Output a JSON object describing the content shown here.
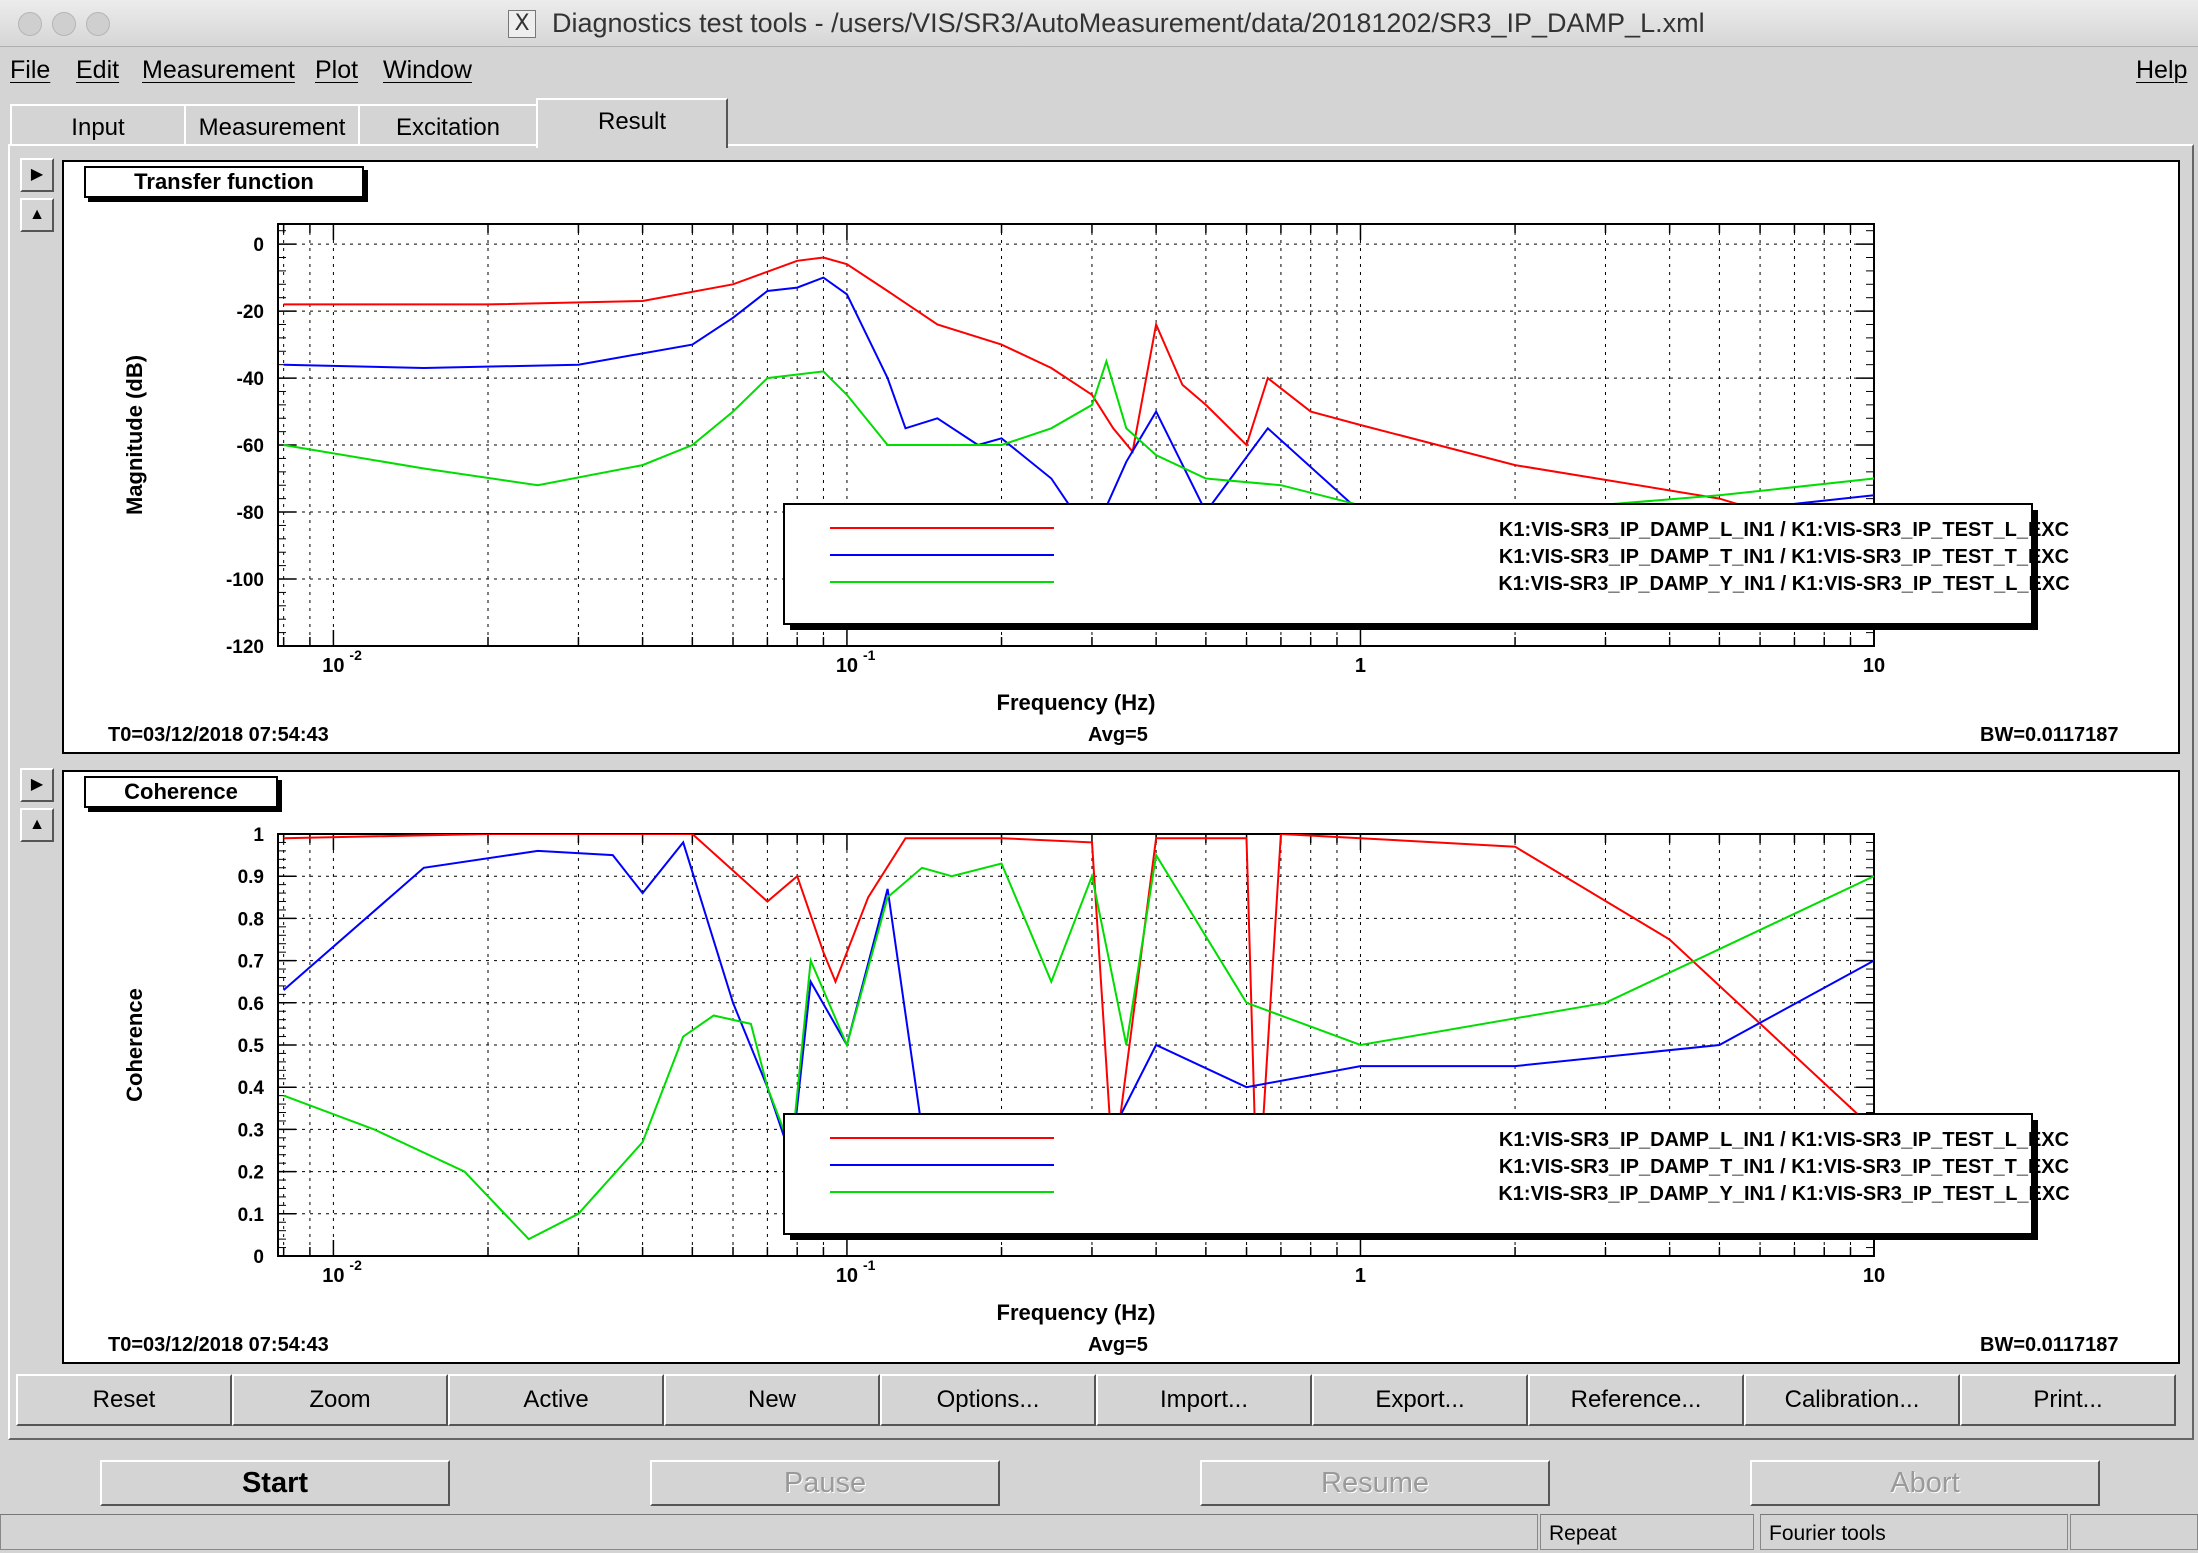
{
  "window": {
    "title": "Diagnostics test tools - /users/VIS/SR3/AutoMeasurement/data/20181202/SR3_IP_DAMP_L.xml",
    "title_icon": "X"
  },
  "menu": {
    "file": "File",
    "edit": "Edit",
    "measurement": "Measurement",
    "plot": "Plot",
    "window": "Window",
    "help": "Help"
  },
  "tabs": [
    "Input",
    "Measurement",
    "Excitation",
    "Result"
  ],
  "colors": {
    "series_L": "#ff0000",
    "series_T": "#0000ff",
    "series_Y": "#00dd00"
  },
  "transfer_panel": {
    "title": "Transfer function",
    "t0": "T0=03/12/2018 07:54:43",
    "avg": "Avg=5",
    "bw": "BW=0.0117187"
  },
  "coherence_panel": {
    "title": "Coherence",
    "t0": "T0=03/12/2018 07:54:43",
    "avg": "Avg=5",
    "bw": "BW=0.0117187"
  },
  "chart_data": [
    {
      "type": "line",
      "xlabel": "Frequency (Hz)",
      "ylabel": "Magnitude (dB)",
      "xscale": "log",
      "xlim": [
        0.0078,
        10
      ],
      "ylim": [
        -120,
        6
      ],
      "yticks": [
        "0",
        "-20",
        "-40",
        "-60",
        "-80",
        "-100",
        "-120"
      ],
      "xtick_labels": [
        "10",
        "-2",
        "10",
        "-1",
        "1",
        "10"
      ],
      "grid": true,
      "legend": "bottom-right",
      "series": [
        {
          "name": "K1:VIS-SR3_IP_DAMP_L_IN1 / K1:VIS-SR3_IP_TEST_L_EXC",
          "x": [
            0.008,
            0.02,
            0.04,
            0.06,
            0.08,
            0.09,
            0.1,
            0.12,
            0.15,
            0.2,
            0.25,
            0.3,
            0.33,
            0.36,
            0.4,
            0.45,
            0.5,
            0.6,
            0.66,
            0.8,
            1,
            2,
            5,
            10
          ],
          "y": [
            -18,
            -18,
            -17,
            -12,
            -5,
            -4,
            -6,
            -14,
            -24,
            -30,
            -37,
            -45,
            -55,
            -62,
            -24,
            -42,
            -48,
            -60,
            -40,
            -50,
            -54,
            -66,
            -76,
            -90
          ]
        },
        {
          "name": "K1:VIS-SR3_IP_DAMP_T_IN1 / K1:VIS-SR3_IP_TEST_T_EXC",
          "x": [
            0.008,
            0.015,
            0.03,
            0.05,
            0.06,
            0.07,
            0.08,
            0.09,
            0.1,
            0.12,
            0.13,
            0.15,
            0.18,
            0.2,
            0.25,
            0.3,
            0.35,
            0.4,
            0.5,
            0.66,
            1,
            2,
            5,
            10
          ],
          "y": [
            -36,
            -37,
            -36,
            -30,
            -22,
            -14,
            -13,
            -10,
            -15,
            -40,
            -55,
            -52,
            -60,
            -58,
            -70,
            -88,
            -65,
            -50,
            -80,
            -55,
            -80,
            -80,
            -80,
            -75
          ]
        },
        {
          "name": "K1:VIS-SR3_IP_DAMP_Y_IN1 / K1:VIS-SR3_IP_TEST_L_EXC",
          "x": [
            0.008,
            0.015,
            0.025,
            0.04,
            0.05,
            0.06,
            0.07,
            0.09,
            0.1,
            0.12,
            0.15,
            0.2,
            0.25,
            0.3,
            0.32,
            0.35,
            0.4,
            0.5,
            0.7,
            1,
            2,
            5,
            10
          ],
          "y": [
            -60,
            -67,
            -72,
            -66,
            -60,
            -50,
            -40,
            -38,
            -45,
            -60,
            -60,
            -60,
            -55,
            -48,
            -35,
            -55,
            -63,
            -70,
            -72,
            -78,
            -80,
            -75,
            -70
          ]
        }
      ]
    },
    {
      "type": "line",
      "xlabel": "Frequency (Hz)",
      "ylabel": "Coherence",
      "xscale": "log",
      "xlim": [
        0.0078,
        10
      ],
      "ylim": [
        0,
        1
      ],
      "yticks": [
        "1",
        "0.9",
        "0.8",
        "0.7",
        "0.6",
        "0.5",
        "0.4",
        "0.3",
        "0.2",
        "0.1",
        "0"
      ],
      "xtick_labels": [
        "10",
        "-2",
        "10",
        "-1",
        "1",
        "10"
      ],
      "grid": true,
      "legend": "bottom-right",
      "series": [
        {
          "name": "K1:VIS-SR3_IP_DAMP_L_IN1 / K1:VIS-SR3_IP_TEST_L_EXC",
          "x": [
            0.008,
            0.02,
            0.05,
            0.07,
            0.08,
            0.09,
            0.095,
            0.11,
            0.13,
            0.2,
            0.3,
            0.33,
            0.4,
            0.6,
            0.63,
            0.7,
            1,
            2,
            4,
            10
          ],
          "y": [
            0.99,
            1,
            1,
            0.84,
            0.9,
            0.72,
            0.65,
            0.85,
            0.99,
            0.99,
            0.98,
            0.2,
            0.99,
            0.99,
            0.1,
            1,
            0.99,
            0.97,
            0.75,
            0.3
          ]
        },
        {
          "name": "K1:VIS-SR3_IP_DAMP_T_IN1 / K1:VIS-SR3_IP_TEST_T_EXC",
          "x": [
            0.008,
            0.015,
            0.025,
            0.035,
            0.04,
            0.048,
            0.06,
            0.07,
            0.078,
            0.085,
            0.1,
            0.12,
            0.14,
            0.16,
            0.2,
            0.3,
            0.4,
            0.6,
            1,
            2,
            5,
            10
          ],
          "y": [
            0.63,
            0.92,
            0.96,
            0.95,
            0.86,
            0.98,
            0.6,
            0.4,
            0.23,
            0.65,
            0.5,
            0.87,
            0.3,
            0.18,
            0.1,
            0.2,
            0.5,
            0.4,
            0.45,
            0.45,
            0.5,
            0.7
          ]
        },
        {
          "name": "K1:VIS-SR3_IP_DAMP_Y_IN1 / K1:VIS-SR3_IP_TEST_L_EXC",
          "x": [
            0.008,
            0.012,
            0.018,
            0.024,
            0.03,
            0.04,
            0.048,
            0.055,
            0.065,
            0.07,
            0.078,
            0.085,
            0.1,
            0.12,
            0.14,
            0.16,
            0.2,
            0.25,
            0.3,
            0.35,
            0.4,
            0.6,
            1,
            3,
            10
          ],
          "y": [
            0.38,
            0.3,
            0.2,
            0.04,
            0.1,
            0.27,
            0.52,
            0.57,
            0.55,
            0.4,
            0.25,
            0.7,
            0.5,
            0.85,
            0.92,
            0.9,
            0.93,
            0.65,
            0.9,
            0.5,
            0.95,
            0.6,
            0.5,
            0.6,
            0.9
          ]
        }
      ]
    }
  ],
  "toolbar": [
    "Reset",
    "Zoom",
    "Active",
    "New",
    "Options...",
    "Import...",
    "Export...",
    "Reference...",
    "Calibration...",
    "Print..."
  ],
  "controls": {
    "start": "Start",
    "pause": "Pause",
    "resume": "Resume",
    "abort": "Abort"
  },
  "status": {
    "repeat": "Repeat",
    "fourier": "Fourier tools"
  }
}
